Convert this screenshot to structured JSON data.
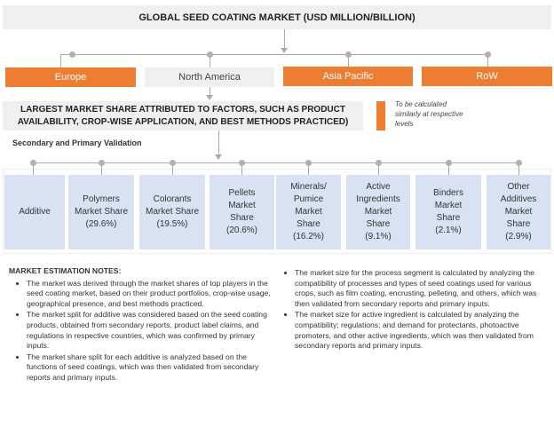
{
  "title": "GLOBAL SEED COATING MARKET (USD MILLION/BILLION)",
  "regions": [
    {
      "label": "Europe",
      "color": "#ed7d31"
    },
    {
      "label": "North America",
      "color": "#efefef"
    },
    {
      "label": "Asia Pacific",
      "color": "#ed7d31"
    },
    {
      "label": "RoW",
      "color": "#ed7d31"
    }
  ],
  "factors": "LARGEST MARKET SHARE ATTRIBUTED TO FACTORS, SUCH AS PRODUCT AVAILABILITY, CROP-WISE APPLICATION, AND BEST METHODS PRACTICED)",
  "legend": "To be calculated similarly at respective levels",
  "validation": "Secondary and Primary Validation",
  "segments": [
    {
      "label": "Additive"
    },
    {
      "label": "Polymers Market Share",
      "share": "(29.6%)"
    },
    {
      "label": "Colorants Market Share",
      "share": "(19.5%)"
    },
    {
      "label": "Pellets Market Share",
      "share": "(20.6%)"
    },
    {
      "label": "Minerals/ Pumice Market Share",
      "share": "(16.2%)"
    },
    {
      "label": "Active Ingredients Market Share",
      "share": "(9.1%)"
    },
    {
      "label": "Binders Market Share",
      "share": "(2.1%)"
    },
    {
      "label": "Other Additives Market Share",
      "share": "(2.9%)"
    }
  ],
  "notes": {
    "heading": "MARKET ESTIMATION NOTES:",
    "left": [
      "The market was derived through the market shares of top players in the seed coating market, based on their product portfolios, crop-wise usage, geographical presence, and best methods practiced.",
      "The market split for additive was considered based on the seed coating products, obtained from secondary reports, product label claims, and regulations in respective countries, which was confirmed by primary inputs.",
      "The market share split for each additive is analyzed based on the functions of seed coatings, which was then validated from secondary reports and primary inputs."
    ],
    "right": [
      "The market size for the process segment is calculated by analyzing the compatibility of processes and types of seed coatings used for various crops, such as film coating, encrusting, pelleting, and others, which was then validated from secondary reports and primary inputs.",
      "The market size for active ingredient is calculated by analyzing the compatibility; regulations; and demand for protectants, photoactive promoters, and other active ingredients, which was then validated from secondary reports and primary inputs."
    ]
  }
}
